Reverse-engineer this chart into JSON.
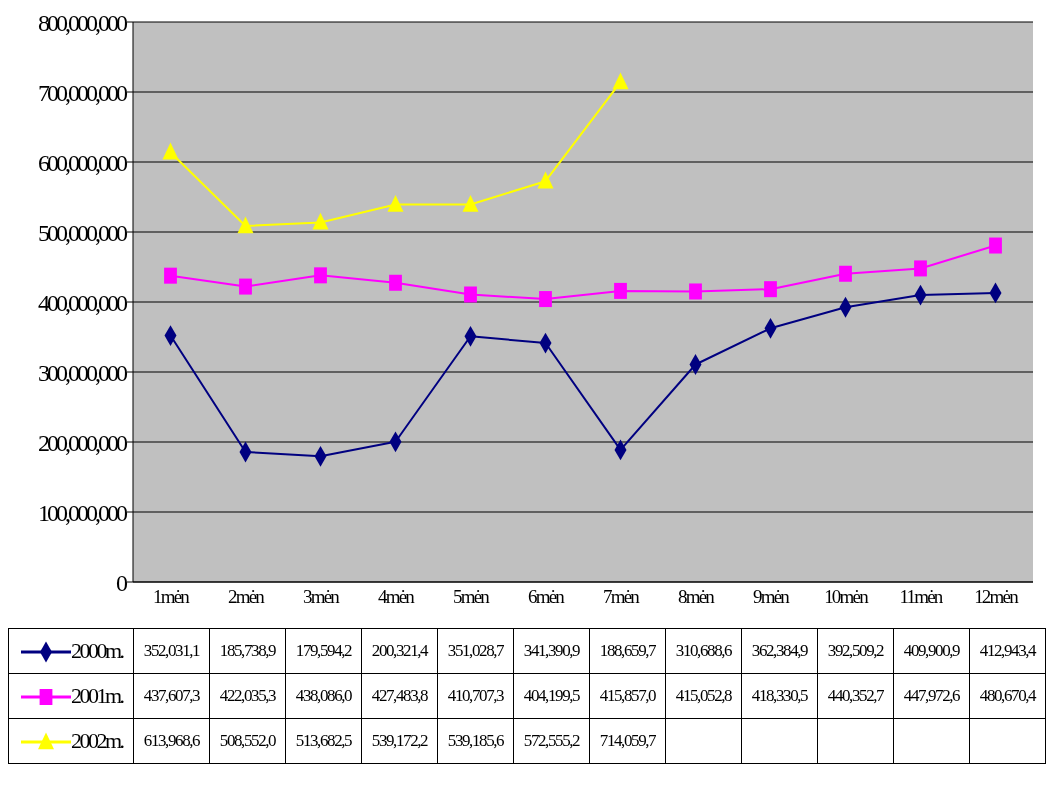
{
  "chart_data": {
    "type": "line",
    "categories": [
      "1mėn",
      "2mėn",
      "3mėn",
      "4mėn",
      "5mėn",
      "6mėn",
      "7mėn",
      "8mėn",
      "9mėn",
      "10mėn",
      "11mėn",
      "12mėn"
    ],
    "series": [
      {
        "name": "2000m.",
        "color": "#000080",
        "marker": "diamond",
        "values": [
          352031100,
          185738900,
          179594200,
          200321400,
          351028700,
          341390900,
          188659700,
          310688600,
          362384900,
          392509200,
          409900900,
          412943400
        ],
        "value_labels": [
          "352,031,1",
          "185,738,9",
          "179,594,2",
          "200,321,4",
          "351,028,7",
          "341,390,9",
          "188,659,7",
          "310,688,6",
          "362,384,9",
          "392,509,2",
          "409,900,9",
          "412,943,4"
        ]
      },
      {
        "name": "2001m.",
        "color": "#ff00ff",
        "marker": "square",
        "values": [
          437607300,
          422035300,
          438086000,
          427483800,
          410707300,
          404199500,
          415857000,
          415052800,
          418330500,
          440352700,
          447972600,
          480670400
        ],
        "value_labels": [
          "437,607,3",
          "422,035,3",
          "438,086,0",
          "427,483,8",
          "410,707,3",
          "404,199,5",
          "415,857,0",
          "415,052,8",
          "418,330,5",
          "440,352,7",
          "447,972,6",
          "480,670,4"
        ]
      },
      {
        "name": "2002m.",
        "color": "#ffff00",
        "marker": "triangle",
        "values": [
          613968600,
          508552000,
          513682500,
          539172200,
          539185600,
          572555200,
          714059700,
          null,
          null,
          null,
          null,
          null
        ],
        "value_labels": [
          "613,968,6",
          "508,552,0",
          "513,682,5",
          "539,172,2",
          "539,185,6",
          "572,555,2",
          "714,059,7",
          null,
          null,
          null,
          null,
          null
        ]
      }
    ],
    "ylim": [
      0,
      800000000
    ],
    "yticks": [
      0,
      {
        "value": 100000000,
        "label": "100,000,000"
      },
      {
        "value": 200000000,
        "label": "200,000,000"
      },
      {
        "value": 300000000,
        "label": "300,000,000"
      },
      {
        "value": 400000000,
        "label": "400,000,000"
      },
      {
        "value": 500000000,
        "label": "500,000,000"
      },
      {
        "value": 600000000,
        "label": "600,000,000"
      },
      {
        "value": 700000000,
        "label": "700,000,000"
      },
      {
        "value": 800000000,
        "label": "800,000,000"
      }
    ],
    "grid": "y",
    "legend": "bottom",
    "line_style": "solid"
  }
}
